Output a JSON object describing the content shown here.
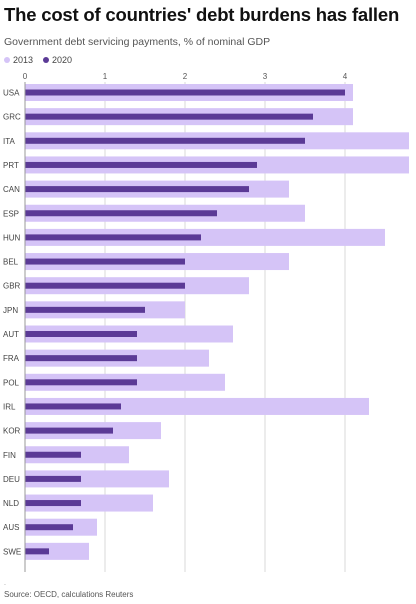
{
  "header": {
    "title": "The cost of countries' debt burdens has fallen",
    "subtitle": "Government debt servicing payments, % of nominal GDP"
  },
  "colors": {
    "series_2013": "#d5c4f7",
    "series_2020": "#5b3a96",
    "grid": "#d9d9d9",
    "text": "#555555"
  },
  "chart_data": {
    "type": "bar",
    "orientation": "horizontal",
    "categories": [
      "USA",
      "GRC",
      "ITA",
      "PRT",
      "CAN",
      "ESP",
      "HUN",
      "BEL",
      "GBR",
      "JPN",
      "AUT",
      "FRA",
      "POL",
      "IRL",
      "KOR",
      "FIN",
      "DEU",
      "NLD",
      "AUS",
      "SWE"
    ],
    "series": [
      {
        "name": "2013",
        "values": [
          4.1,
          4.1,
          4.8,
          4.8,
          3.3,
          3.5,
          4.5,
          3.3,
          2.8,
          2.0,
          2.6,
          2.3,
          2.5,
          4.3,
          1.7,
          1.3,
          1.8,
          1.6,
          0.9,
          0.8
        ]
      },
      {
        "name": "2020",
        "values": [
          4.0,
          3.6,
          3.5,
          2.9,
          2.8,
          2.4,
          2.2,
          2.0,
          2.0,
          1.5,
          1.4,
          1.4,
          1.4,
          1.2,
          1.1,
          0.7,
          0.7,
          0.7,
          0.6,
          0.3
        ]
      }
    ],
    "xticks": [
      0,
      1,
      2,
      3,
      4
    ],
    "xlim": [
      0,
      4.8
    ],
    "grid": true,
    "legend_position": "top-left"
  },
  "footer": {
    "note": ".",
    "source": "Source: OECD, calculations Reuters"
  }
}
